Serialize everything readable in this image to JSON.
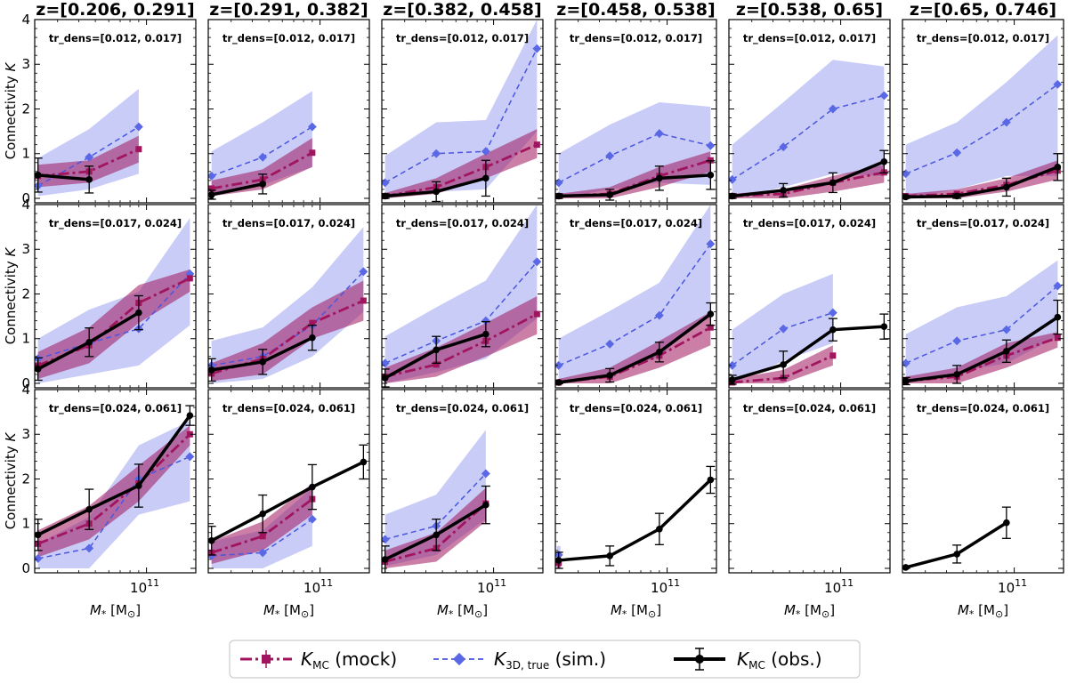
{
  "chart_data": {
    "type": "line",
    "x_scale": "log",
    "xlim": [
      22000000000,
      195000000000
    ],
    "ylim": [
      -0.1,
      4.0
    ],
    "yticks": [
      0,
      1,
      2,
      3,
      4
    ],
    "xtick_label": "10^11",
    "xlabel": "M* [M⊙]",
    "ylabel": "Connectivity K",
    "columns": [
      "z=[0.206, 0.291]",
      "z=[0.291, 0.382]",
      "z=[0.382, 0.458]",
      "z=[0.458, 0.538]",
      "z=[0.538, 0.65]",
      "z=[0.65, 0.746]"
    ],
    "rows": [
      "tr_dens=[0.012, 0.017]",
      "tr_dens=[0.017, 0.024]",
      "tr_dens=[0.024, 0.061]"
    ],
    "mass_bins": [
      23000000000,
      46000000000,
      90000000000,
      180000000000
    ],
    "legend": [
      {
        "key": "mock",
        "label": "K_MC (mock)",
        "color": "#a0155e"
      },
      {
        "key": "sim",
        "label": "K_3D,true (sim.)",
        "color": "#4a56e0"
      },
      {
        "key": "obs",
        "label": "K_MC (obs.)",
        "color": "#000000"
      }
    ],
    "panels": [
      [
        {
          "mock": [
            0.5,
            0.6,
            1.1,
            null
          ],
          "mock_lo": [
            0.25,
            0.35,
            0.8,
            null
          ],
          "mock_hi": [
            0.75,
            0.85,
            1.4,
            null
          ],
          "sim": [
            0.28,
            0.92,
            1.6,
            null
          ],
          "sim_lo": [
            0.05,
            0.2,
            0.55,
            null
          ],
          "sim_hi": [
            0.9,
            1.55,
            2.45,
            null
          ],
          "obs": [
            0.52,
            0.42,
            null,
            null
          ],
          "obs_err": [
            0.38,
            0.3,
            null,
            null
          ]
        },
        {
          "mock": [
            0.22,
            0.42,
            1.02,
            null
          ],
          "mock_lo": [
            0.05,
            0.2,
            0.7,
            null
          ],
          "mock_hi": [
            0.4,
            0.65,
            1.35,
            null
          ],
          "sim": [
            0.5,
            0.92,
            1.6,
            null
          ],
          "sim_lo": [
            0.1,
            0.3,
            0.7,
            null
          ],
          "sim_hi": [
            1.05,
            1.7,
            2.4,
            null
          ],
          "obs": [
            0.08,
            0.32,
            null,
            null
          ],
          "obs_err": [
            0.1,
            0.22,
            null,
            null
          ]
        },
        {
          "mock": [
            0.05,
            0.25,
            0.7,
            1.2
          ],
          "mock_lo": [
            0.0,
            0.1,
            0.45,
            0.9
          ],
          "mock_hi": [
            0.12,
            0.45,
            1.0,
            1.55
          ],
          "sim": [
            0.35,
            1.0,
            1.05,
            3.35
          ],
          "sim_lo": [
            0.0,
            0.15,
            0.2,
            1.5
          ],
          "sim_hi": [
            0.95,
            1.7,
            1.75,
            4.0
          ],
          "obs": [
            0.05,
            0.15,
            0.45,
            null
          ],
          "obs_err": [
            0.05,
            0.22,
            0.4,
            null
          ]
        },
        {
          "mock": [
            0.05,
            0.1,
            0.5,
            0.85
          ],
          "mock_lo": [
            0.0,
            0.0,
            0.25,
            0.6
          ],
          "mock_hi": [
            0.1,
            0.25,
            0.7,
            1.05
          ],
          "sim": [
            0.35,
            0.95,
            1.45,
            1.18
          ],
          "sim_lo": [
            0.0,
            0.2,
            0.35,
            0.3
          ],
          "sim_hi": [
            1.0,
            1.65,
            2.15,
            2.05
          ],
          "obs": [
            0.05,
            0.08,
            0.45,
            0.52
          ],
          "obs_err": [
            0.05,
            0.12,
            0.27,
            0.32
          ]
        },
        {
          "mock": [
            0.05,
            0.1,
            0.35,
            0.58
          ],
          "mock_lo": [
            0.0,
            0.0,
            0.15,
            0.35
          ],
          "mock_hi": [
            0.1,
            0.2,
            0.5,
            0.75
          ],
          "sim": [
            0.42,
            1.15,
            2.0,
            2.3
          ],
          "sim_lo": [
            0.0,
            0.25,
            0.55,
            0.5
          ],
          "sim_hi": [
            1.2,
            2.15,
            3.1,
            2.95
          ],
          "obs": [
            0.05,
            0.18,
            0.35,
            0.82
          ],
          "obs_err": [
            0.05,
            0.15,
            0.22,
            0.25
          ]
        },
        {
          "mock": [
            0.05,
            0.1,
            0.3,
            0.62
          ],
          "mock_lo": [
            0.0,
            0.0,
            0.15,
            0.42
          ],
          "mock_hi": [
            0.1,
            0.2,
            0.45,
            0.85
          ],
          "sim": [
            0.55,
            1.02,
            1.7,
            2.55
          ],
          "sim_lo": [
            0.0,
            0.2,
            0.5,
            0.5
          ],
          "sim_hi": [
            1.2,
            1.7,
            2.6,
            3.65
          ],
          "obs": [
            0.03,
            0.05,
            0.25,
            0.7
          ],
          "obs_err": [
            0.03,
            0.05,
            0.2,
            0.3
          ]
        }
      ],
      [
        {
          "mock": [
            0.4,
            0.85,
            1.8,
            2.35
          ],
          "mock_lo": [
            0.1,
            0.45,
            1.35,
            2.05
          ],
          "mock_hi": [
            0.7,
            1.25,
            2.2,
            2.55
          ],
          "sim": [
            0.55,
            0.9,
            1.22,
            2.45
          ],
          "sim_lo": [
            0.0,
            0.2,
            0.4,
            1.3
          ],
          "sim_hi": [
            1.0,
            1.65,
            2.05,
            3.7
          ],
          "obs": [
            0.32,
            0.92,
            1.58,
            null
          ],
          "obs_err": [
            0.25,
            0.32,
            0.38,
            null
          ]
        },
        {
          "mock": [
            0.22,
            0.55,
            1.35,
            1.85
          ],
          "mock_lo": [
            0.05,
            0.2,
            1.0,
            1.4
          ],
          "mock_hi": [
            0.45,
            0.9,
            1.7,
            2.3
          ],
          "sim": [
            0.4,
            0.6,
            1.3,
            2.5
          ],
          "sim_lo": [
            0.0,
            0.1,
            0.6,
            1.6
          ],
          "sim_hi": [
            0.95,
            1.25,
            2.15,
            3.5
          ],
          "obs": [
            0.3,
            0.48,
            1.02,
            null
          ],
          "obs_err": [
            0.25,
            0.28,
            0.28,
            null
          ]
        },
        {
          "mock": [
            0.15,
            0.42,
            0.95,
            1.55
          ],
          "mock_lo": [
            0.0,
            0.15,
            0.6,
            1.1
          ],
          "mock_hi": [
            0.35,
            0.8,
            1.35,
            1.95
          ],
          "sim": [
            0.45,
            0.95,
            1.4,
            2.72
          ],
          "sim_lo": [
            0.0,
            0.25,
            0.55,
            1.45
          ],
          "sim_hi": [
            1.05,
            1.7,
            2.3,
            4.0
          ],
          "obs": [
            0.12,
            0.75,
            1.1,
            null
          ],
          "obs_err": [
            0.2,
            0.3,
            0.28,
            null
          ]
        },
        {
          "mock": [
            0.02,
            0.15,
            0.62,
            1.25
          ],
          "mock_lo": [
            0.0,
            0.0,
            0.35,
            0.85
          ],
          "mock_hi": [
            0.1,
            0.35,
            0.95,
            1.6
          ],
          "sim": [
            0.4,
            0.88,
            1.52,
            3.12
          ],
          "sim_lo": [
            0.0,
            0.2,
            0.6,
            1.6
          ],
          "sim_hi": [
            1.0,
            1.62,
            2.25,
            4.0
          ],
          "obs": [
            0.02,
            0.18,
            0.7,
            1.55
          ],
          "obs_err": [
            0.03,
            0.15,
            0.22,
            0.25
          ]
        },
        {
          "mock": [
            0.02,
            0.12,
            0.62,
            null
          ],
          "mock_lo": [
            0.0,
            0.0,
            0.4,
            null
          ],
          "mock_hi": [
            0.1,
            0.3,
            0.85,
            null
          ],
          "sim": [
            0.4,
            1.22,
            1.58,
            null
          ],
          "sim_lo": [
            0.0,
            0.5,
            0.9,
            null
          ],
          "sim_hi": [
            1.2,
            2.0,
            2.45,
            null
          ],
          "obs": [
            0.08,
            0.42,
            1.2,
            1.27
          ],
          "obs_err": [
            0.1,
            0.3,
            0.25,
            0.28
          ]
        },
        {
          "mock": [
            0.05,
            0.15,
            0.62,
            1.02
          ],
          "mock_lo": [
            0.0,
            0.0,
            0.35,
            0.8
          ],
          "mock_hi": [
            0.15,
            0.35,
            0.9,
            1.15
          ],
          "sim": [
            0.45,
            0.95,
            1.2,
            2.18
          ],
          "sim_lo": [
            0.0,
            0.25,
            0.45,
            1.05
          ],
          "sim_hi": [
            1.1,
            1.7,
            1.95,
            2.75
          ],
          "obs": [
            0.05,
            0.2,
            0.72,
            1.48
          ],
          "obs_err": [
            0.08,
            0.2,
            0.25,
            0.38
          ]
        }
      ],
      [
        {
          "mock": [
            0.55,
            1.0,
            1.9,
            3.0
          ],
          "mock_lo": [
            0.25,
            0.65,
            1.5,
            2.75
          ],
          "mock_hi": [
            0.85,
            1.4,
            2.3,
            3.2
          ],
          "sim": [
            0.22,
            0.45,
            2.0,
            2.5
          ],
          "sim_lo": [
            0.0,
            0.0,
            1.2,
            1.5
          ],
          "sim_hi": [
            0.55,
            1.15,
            2.75,
            3.3
          ],
          "obs": [
            0.75,
            1.32,
            1.85,
            3.42
          ],
          "obs_err": [
            0.35,
            0.45,
            0.48,
            0.22
          ]
        },
        {
          "mock": [
            0.35,
            0.72,
            1.55,
            null
          ],
          "mock_lo": [
            0.1,
            0.4,
            1.2,
            null
          ],
          "mock_hi": [
            0.6,
            1.05,
            1.9,
            null
          ],
          "sim": [
            0.28,
            0.35,
            1.1,
            null
          ],
          "sim_lo": [
            0.0,
            0.0,
            0.5,
            null
          ],
          "sim_hi": [
            0.6,
            0.85,
            1.8,
            null
          ],
          "obs": [
            0.62,
            1.22,
            1.82,
            2.38
          ],
          "obs_err": [
            0.32,
            0.42,
            0.5,
            0.38
          ]
        },
        {
          "mock": [
            0.15,
            0.45,
            1.45,
            null
          ],
          "mock_lo": [
            0.0,
            0.15,
            1.05,
            null
          ],
          "mock_hi": [
            0.4,
            0.8,
            1.8,
            null
          ],
          "sim": [
            0.65,
            0.95,
            2.12,
            null
          ],
          "sim_lo": [
            0.05,
            0.3,
            1.1,
            null
          ],
          "sim_hi": [
            1.2,
            1.65,
            3.1,
            null
          ],
          "obs": [
            0.2,
            0.75,
            1.42,
            null
          ],
          "obs_err": [
            0.3,
            0.35,
            0.42,
            null
          ]
        },
        {
          "mock": [
            0.12,
            null,
            null,
            null
          ],
          "mock_lo": [
            0.0,
            null,
            null,
            null
          ],
          "mock_hi": [
            0.2,
            null,
            null,
            null
          ],
          "sim": [
            0.3,
            null,
            null,
            null
          ],
          "sim_lo": [
            0.0,
            null,
            null,
            null
          ],
          "sim_hi": [
            0.5,
            null,
            null,
            null
          ],
          "obs": [
            0.18,
            0.28,
            0.88,
            1.98
          ],
          "obs_err": [
            0.18,
            0.22,
            0.35,
            0.3
          ]
        },
        {
          "mock": [
            null,
            null,
            null,
            null
          ],
          "mock_lo": [
            null,
            null,
            null,
            null
          ],
          "mock_hi": [
            null,
            null,
            null,
            null
          ],
          "sim": [
            null,
            null,
            null,
            null
          ],
          "sim_lo": [
            null,
            null,
            null,
            null
          ],
          "sim_hi": [
            null,
            null,
            null,
            null
          ],
          "obs": [
            null,
            null,
            null,
            null
          ],
          "obs_err": [
            null,
            null,
            null,
            null
          ]
        },
        {
          "mock": [
            null,
            null,
            null,
            null
          ],
          "mock_lo": [
            null,
            null,
            null,
            null
          ],
          "mock_hi": [
            null,
            null,
            null,
            null
          ],
          "sim": [
            null,
            null,
            null,
            null
          ],
          "sim_lo": [
            null,
            null,
            null,
            null
          ],
          "sim_hi": [
            null,
            null,
            null,
            null
          ],
          "obs": [
            0.02,
            0.32,
            1.02,
            null
          ],
          "obs_err": [
            0.02,
            0.2,
            0.35,
            null
          ]
        }
      ]
    ]
  }
}
